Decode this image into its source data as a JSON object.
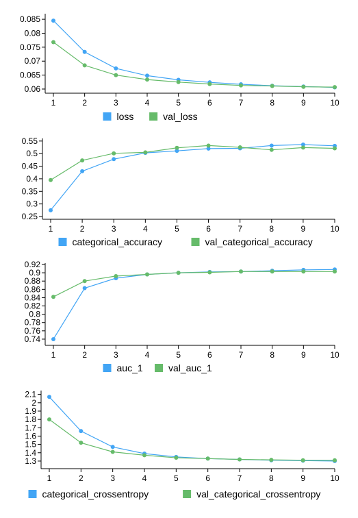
{
  "chart_data": [
    {
      "type": "line",
      "x": [
        1,
        2,
        3,
        4,
        5,
        6,
        7,
        8,
        9,
        10
      ],
      "x_ticks": [
        "1",
        "2",
        "3",
        "4",
        "5",
        "6",
        "7",
        "8",
        "9",
        "10"
      ],
      "ylim": [
        0.0595,
        0.0865
      ],
      "y_ticks": [
        0.06,
        0.065,
        0.07,
        0.075,
        0.08,
        0.085
      ],
      "y_tick_labels": [
        "0.06",
        "0.065",
        "0.07",
        "0.075",
        "0.08",
        "0.085"
      ],
      "grid": false,
      "legend_position": "bottom",
      "series": [
        {
          "name": "loss",
          "color": "#42a5f5",
          "values": [
            0.0845,
            0.0733,
            0.0674,
            0.0648,
            0.0633,
            0.0624,
            0.0617,
            0.0612,
            0.0609,
            0.0606
          ]
        },
        {
          "name": "val_loss",
          "color": "#66bb6a",
          "values": [
            0.0768,
            0.0685,
            0.065,
            0.0634,
            0.0625,
            0.0618,
            0.0613,
            0.0611,
            0.0608,
            0.0607
          ]
        }
      ]
    },
    {
      "type": "line",
      "x": [
        1,
        2,
        3,
        4,
        5,
        6,
        7,
        8,
        9,
        10
      ],
      "x_ticks": [
        "1",
        "2",
        "3",
        "4",
        "5",
        "6",
        "7",
        "8",
        "9",
        "10"
      ],
      "ylim": [
        0.25,
        0.555
      ],
      "y_ticks": [
        0.25,
        0.3,
        0.35,
        0.4,
        0.45,
        0.5,
        0.55
      ],
      "y_tick_labels": [
        "0.25",
        "0.3",
        "0.35",
        "0.4",
        "0.45",
        "0.5",
        "0.55"
      ],
      "grid": false,
      "legend_position": "bottom",
      "series": [
        {
          "name": "categorical_accuracy",
          "color": "#42a5f5",
          "values": [
            0.275,
            0.43,
            0.478,
            0.503,
            0.511,
            0.52,
            0.521,
            0.532,
            0.536,
            0.531
          ]
        },
        {
          "name": "val_categorical_accuracy",
          "color": "#66bb6a",
          "values": [
            0.395,
            0.473,
            0.501,
            0.505,
            0.523,
            0.532,
            0.525,
            0.515,
            0.524,
            0.521
          ]
        }
      ]
    },
    {
      "type": "line",
      "x": [
        1,
        2,
        3,
        4,
        5,
        6,
        7,
        8,
        9,
        10
      ],
      "x_ticks": [
        "1",
        "2",
        "3",
        "4",
        "5",
        "6",
        "7",
        "8",
        "9",
        "10"
      ],
      "ylim": [
        0.73,
        0.92
      ],
      "y_ticks": [
        0.74,
        0.76,
        0.78,
        0.8,
        0.82,
        0.84,
        0.86,
        0.88,
        0.9,
        0.92
      ],
      "y_tick_labels": [
        "0.74",
        "0.76",
        "0.78",
        "0.8",
        "0.82",
        "0.84",
        "0.86",
        "0.88",
        "0.9",
        "0.92"
      ],
      "grid": false,
      "legend_position": "bottom",
      "series": [
        {
          "name": "auc_1",
          "color": "#42a5f5",
          "values": [
            0.74,
            0.863,
            0.887,
            0.896,
            0.9,
            0.902,
            0.903,
            0.905,
            0.907,
            0.908
          ]
        },
        {
          "name": "val_auc_1",
          "color": "#66bb6a",
          "values": [
            0.842,
            0.88,
            0.892,
            0.896,
            0.9,
            0.901,
            0.903,
            0.903,
            0.903,
            0.903
          ]
        }
      ]
    },
    {
      "type": "line",
      "x": [
        1,
        2,
        3,
        4,
        5,
        6,
        7,
        8,
        9,
        10
      ],
      "x_ticks": [
        "1",
        "2",
        "3",
        "4",
        "5",
        "6",
        "7",
        "8",
        "9",
        "10"
      ],
      "ylim": [
        1.25,
        2.13
      ],
      "y_ticks": [
        1.3,
        1.4,
        1.5,
        1.6,
        1.7,
        1.8,
        1.9,
        2,
        2.1
      ],
      "y_tick_labels": [
        "1.3",
        "1.4",
        "1.5",
        "1.6",
        "1.7",
        "1.8",
        "1.9",
        "2",
        "2.1"
      ],
      "grid": false,
      "legend_position": "bottom",
      "series": [
        {
          "name": "categorical_crossentropy",
          "color": "#42a5f5",
          "values": [
            2.07,
            1.66,
            1.47,
            1.39,
            1.35,
            1.33,
            1.32,
            1.31,
            1.305,
            1.3
          ]
        },
        {
          "name": "val_categorical_crossentropy",
          "color": "#66bb6a",
          "values": [
            1.8,
            1.52,
            1.41,
            1.37,
            1.34,
            1.33,
            1.32,
            1.315,
            1.31,
            1.31
          ]
        }
      ]
    }
  ]
}
